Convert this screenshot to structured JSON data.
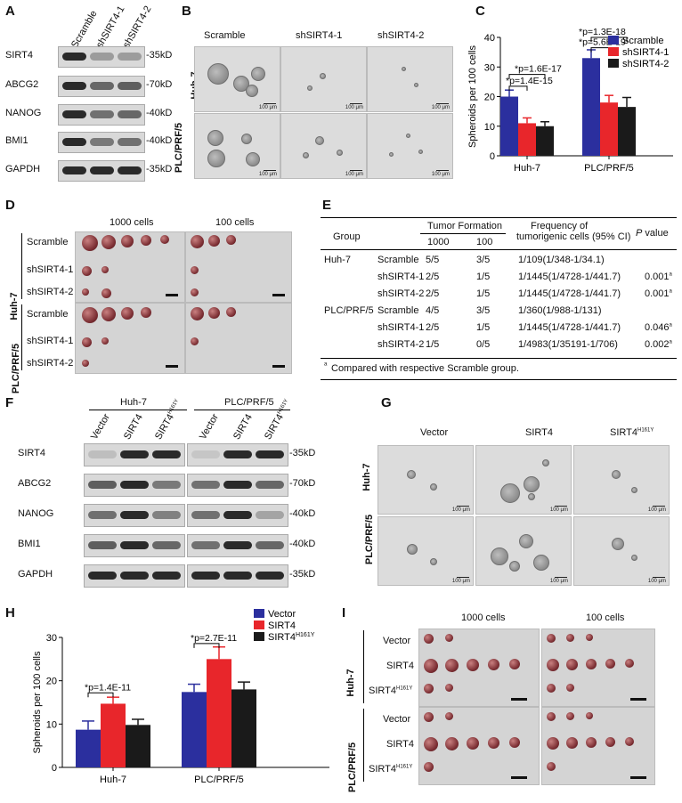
{
  "panels": {
    "A": {
      "label": "A",
      "columns": [
        "Scramble",
        "shSIRT4-1",
        "shSIRT4-2"
      ],
      "rows": [
        {
          "name": "SIRT4",
          "size": "35kD"
        },
        {
          "name": "ABCG2",
          "size": "70kD"
        },
        {
          "name": "NANOG",
          "size": "40kD"
        },
        {
          "name": "BMI1",
          "size": "40kD"
        },
        {
          "name": "GAPDH",
          "size": "35kD"
        }
      ]
    },
    "B": {
      "label": "B",
      "columns": [
        "Scramble",
        "shSIRT4-1",
        "shSIRT4-2"
      ],
      "rows": [
        "Huh-7",
        "PLC/PRF/5"
      ],
      "scale": "100 μm"
    },
    "C": {
      "label": "C",
      "chart_data": {
        "type": "bar",
        "categories": [
          "Huh-7",
          "PLC/PRF/5"
        ],
        "series": [
          {
            "name": "Scramble",
            "color": "#2b2f9e",
            "values": [
              20,
              33
            ],
            "errors": [
              2.2,
              2.8
            ]
          },
          {
            "name": "shSIRT4-1",
            "color": "#e8262b",
            "values": [
              11,
              18
            ],
            "errors": [
              1.8,
              2.4
            ]
          },
          {
            "name": "shSIRT4-2",
            "color": "#1a1a1a",
            "values": [
              10,
              16.5
            ],
            "errors": [
              1.5,
              3.2
            ]
          }
        ],
        "ylabel": "Spheroids per 100 cells",
        "ylim": [
          0,
          40
        ],
        "yticks": [
          0,
          10,
          20,
          30,
          40
        ],
        "legend": "top-right",
        "annotations": [
          "*p=1.4E-15",
          "*p=1.6E-17",
          "*p=5.6E-19",
          "*p=1.3E-18"
        ]
      }
    },
    "D": {
      "label": "D",
      "columns": [
        "1000 cells",
        "100 cells"
      ],
      "groups": [
        "Huh-7",
        "PLC/PRF/5"
      ],
      "rows": [
        "Scramble",
        "shSIRT4-1",
        "shSIRT4-2"
      ]
    },
    "E": {
      "label": "E",
      "head": {
        "group": "Group",
        "tumor_formation": "Tumor Formation",
        "c1000": "1000",
        "c100": "100",
        "freq1": "Frequency of",
        "freq2": "tumorigenic cells (95% CI)",
        "p": "P",
        "pval": " value"
      },
      "rows": [
        {
          "line": "Huh-7",
          "group": "Scramble",
          "a": "5/5",
          "b": "3/5",
          "freq": "1/109(1/348-1/34.1)",
          "p": "",
          "sup": ""
        },
        {
          "line": "",
          "group": "shSIRT4-1",
          "a": "2/5",
          "b": "1/5",
          "freq": "1/1445(1/4728-1/441.7)",
          "p": "0.001",
          "sup": "a"
        },
        {
          "line": "",
          "group": "shSIRT4-2",
          "a": "2/5",
          "b": "1/5",
          "freq": "1/1445(1/4728-1/441.7)",
          "p": "0.001",
          "sup": "a"
        },
        {
          "line": "PLC/PRF/5",
          "group": "Scramble",
          "a": "4/5",
          "b": "3/5",
          "freq": "1/360(1/988-1/131)",
          "p": "",
          "sup": ""
        },
        {
          "line": "",
          "group": "shSIRT4-1",
          "a": "2/5",
          "b": "1/5",
          "freq": "1/1445(1/4728-1/441.7)",
          "p": "0.046",
          "sup": "a"
        },
        {
          "line": "",
          "group": "shSIRT4-2",
          "a": "1/5",
          "b": "0/5",
          "freq": "1/4983(1/35191-1/706)",
          "p": "0.002",
          "sup": "a"
        }
      ],
      "footnote_sup": "a",
      "footnote": "Compared with respective Scramble group."
    },
    "F": {
      "label": "F",
      "groups": [
        "Huh-7",
        "PLC/PRF/5"
      ],
      "columns": [
        "Vector",
        "SIRT4",
        "SIRT4",
        "Vector",
        "SIRT4",
        "SIRT4"
      ],
      "superscripts": [
        "",
        "",
        "H161Y",
        "",
        "",
        "H161Y"
      ],
      "rows": [
        {
          "name": "SIRT4",
          "size": "35kD"
        },
        {
          "name": "ABCG2",
          "size": "70kD"
        },
        {
          "name": "NANOG",
          "size": "40kD"
        },
        {
          "name": "BMI1",
          "size": "40kD"
        },
        {
          "name": "GAPDH",
          "size": "35kD"
        }
      ]
    },
    "G": {
      "label": "G",
      "columns": [
        "Vector",
        "SIRT4",
        "SIRT4"
      ],
      "superscripts": [
        "",
        "",
        "H161Y"
      ],
      "rows": [
        "Huh-7",
        "PLC/PRF/5"
      ],
      "scale": "100 μm"
    },
    "H": {
      "label": "H",
      "chart_data": {
        "type": "bar",
        "categories": [
          "Huh-7",
          "PLC/PRF/5"
        ],
        "series": [
          {
            "name": "Vector",
            "color": "#2b2f9e",
            "values": [
              8.7,
              17.4
            ],
            "errors": [
              2.0,
              1.8
            ]
          },
          {
            "name": "SIRT4",
            "color": "#e8262b",
            "values": [
              14.7,
              25
            ],
            "errors": [
              1.5,
              2.8
            ]
          },
          {
            "name": "SIRT4H161Y",
            "color": "#1a1a1a",
            "values": [
              9.8,
              18
            ],
            "errors": [
              1.3,
              1.7
            ]
          }
        ],
        "ylabel": "Spheroids per 100 cells",
        "ylim": [
          0,
          30
        ],
        "yticks": [
          0,
          10,
          20,
          30
        ],
        "legend": "top-right",
        "annotations": [
          "*p=1.4E-11",
          "*p=2.7E-11"
        ]
      }
    },
    "I": {
      "label": "I",
      "columns": [
        "1000 cells",
        "100 cells"
      ],
      "groups": [
        "Huh-7",
        "PLC/PRF/5"
      ],
      "rows": [
        "Vector",
        "SIRT4",
        "SIRT4"
      ],
      "superscripts": [
        "",
        "",
        "H161Y"
      ]
    }
  }
}
